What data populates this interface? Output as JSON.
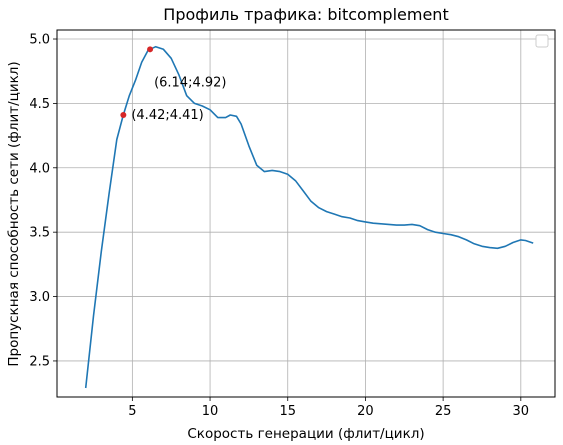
{
  "chart_data": {
    "type": "line",
    "title": "Профиль трафика: bitcomplement",
    "xlabel": "Скорость генерации (флит/цикл)",
    "ylabel": "Пропускная способность сети (флит/цикл)",
    "xlim": [
      0.15,
      32.2
    ],
    "ylim": [
      2.22,
      5.07
    ],
    "xticks": [
      5,
      10,
      15,
      20,
      25,
      30
    ],
    "yticks": [
      2.5,
      3.0,
      3.5,
      4.0,
      4.5,
      5.0
    ],
    "grid": true,
    "legend": "top-right",
    "line_color": "#1f77b4",
    "marker_color": "#d62728",
    "series": [
      {
        "x": [
          2.0,
          2.5,
          3.0,
          3.5,
          4.0,
          4.42,
          4.8,
          5.2,
          5.6,
          6.0,
          6.14,
          6.5,
          7.0,
          7.5,
          8.0,
          8.5,
          9.0,
          9.5,
          10.0,
          10.5,
          11.0,
          11.3,
          11.7,
          12.0,
          12.5,
          13.0,
          13.5,
          14.0,
          14.5,
          15.0,
          15.5,
          16.0,
          16.5,
          17.0,
          17.5,
          18.0,
          18.5,
          19.0,
          19.5,
          20.0,
          20.5,
          21.0,
          21.5,
          22.0,
          22.5,
          23.0,
          23.5,
          24.0,
          24.5,
          25.0,
          25.5,
          26.0,
          26.5,
          27.0,
          27.5,
          28.0,
          28.5,
          29.0,
          29.5,
          30.0,
          30.3,
          30.8
        ],
        "y": [
          2.29,
          2.85,
          3.35,
          3.8,
          4.22,
          4.41,
          4.56,
          4.68,
          4.82,
          4.91,
          4.92,
          4.94,
          4.92,
          4.85,
          4.72,
          4.56,
          4.5,
          4.48,
          4.45,
          4.39,
          4.39,
          4.41,
          4.4,
          4.34,
          4.17,
          4.02,
          3.97,
          3.98,
          3.97,
          3.95,
          3.9,
          3.82,
          3.74,
          3.69,
          3.66,
          3.64,
          3.62,
          3.61,
          3.59,
          3.58,
          3.57,
          3.565,
          3.56,
          3.555,
          3.555,
          3.56,
          3.55,
          3.52,
          3.5,
          3.49,
          3.48,
          3.465,
          3.44,
          3.41,
          3.39,
          3.38,
          3.375,
          3.39,
          3.42,
          3.44,
          3.435,
          3.415
        ]
      }
    ],
    "points": [
      {
        "x": 4.42,
        "y": 4.41,
        "label": "(4.42;4.41)"
      },
      {
        "x": 6.14,
        "y": 4.92,
        "label": "(6.14;4.92)"
      }
    ]
  }
}
